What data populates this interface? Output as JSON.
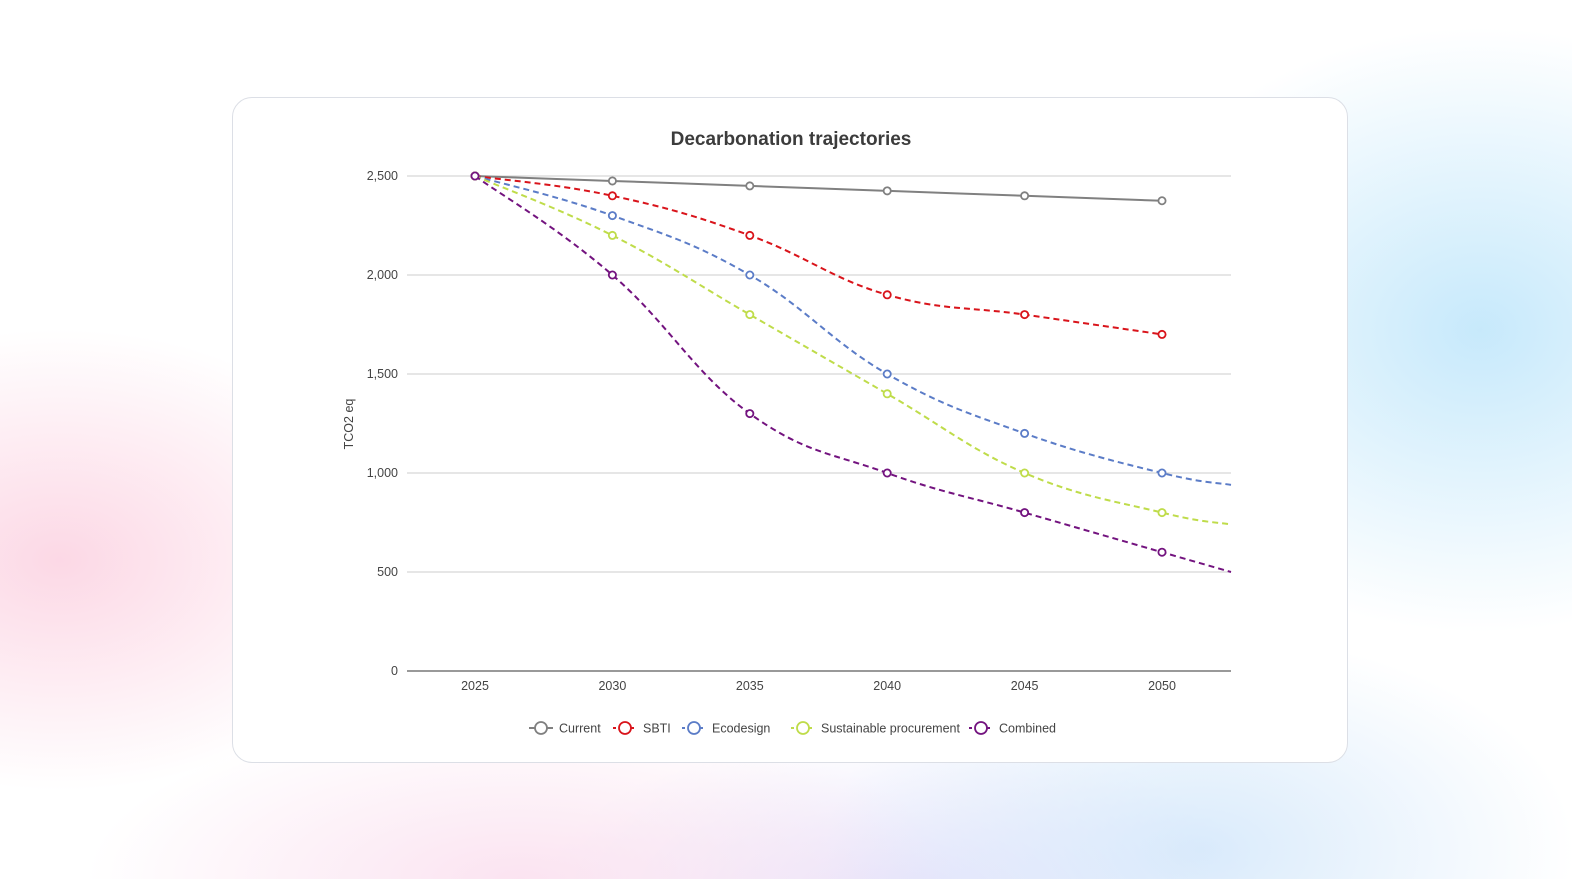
{
  "chart_data": {
    "type": "line",
    "title": "Decarbonation trajectories",
    "xlabel": "",
    "ylabel": "TCO2 eq",
    "x": [
      "2025",
      "2030",
      "2035",
      "2040",
      "2045",
      "2050"
    ],
    "ylim": [
      0,
      2500
    ],
    "yticks": [
      0,
      500,
      1000,
      1500,
      2000,
      2500
    ],
    "ytick_labels": [
      "0",
      "500",
      "1,000",
      "1,500",
      "2,000",
      "2,500"
    ],
    "grid": true,
    "legend": "bottom",
    "series": [
      {
        "name": "Current",
        "color": "#808080",
        "dashed": false,
        "values": [
          2500,
          2475,
          2450,
          2425,
          2400,
          2375
        ],
        "trend_end": 2375
      },
      {
        "name": "SBTI",
        "color": "#d9141b",
        "dashed": true,
        "values": [
          2500,
          2400,
          2200,
          1900,
          1800,
          1700
        ],
        "trend_end": 1700
      },
      {
        "name": "Ecodesign",
        "color": "#5b7cc7",
        "dashed": true,
        "values": [
          2500,
          2300,
          2000,
          1500,
          1200,
          1000
        ],
        "trend_end": 940
      },
      {
        "name": "Sustainable procurement",
        "color": "#bfdc4a",
        "dashed": true,
        "values": [
          2500,
          2200,
          1800,
          1400,
          1000,
          800
        ],
        "trend_end": 740
      },
      {
        "name": "Combined",
        "color": "#73137f",
        "dashed": true,
        "values": [
          2500,
          2000,
          1300,
          1000,
          800,
          600
        ],
        "trend_end": 500
      }
    ]
  }
}
